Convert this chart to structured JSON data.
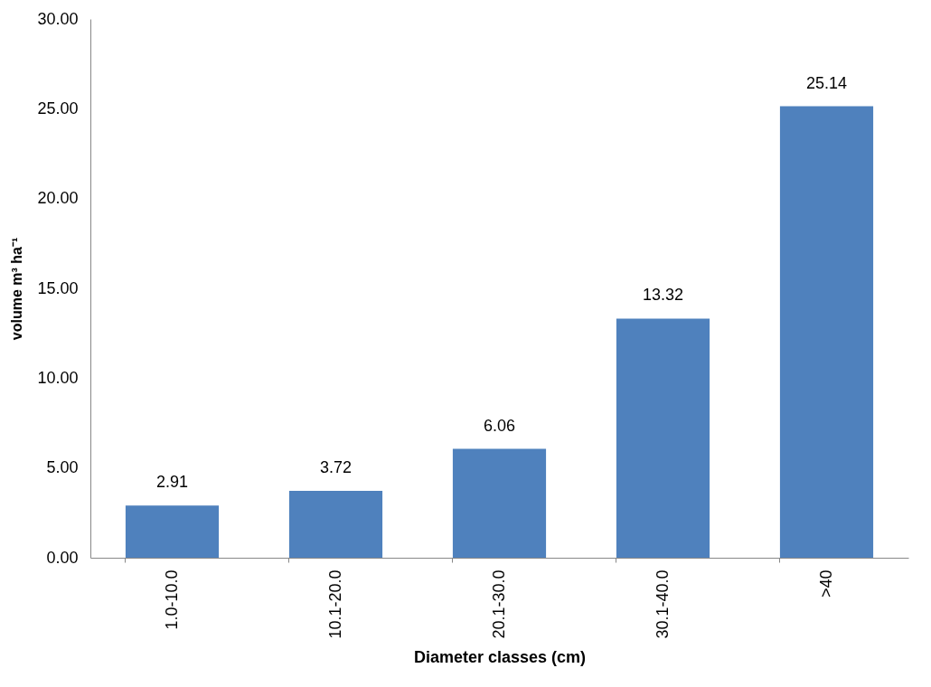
{
  "chart_data": {
    "type": "bar",
    "xlabel": "Diameter classes (cm)",
    "ylabel": "volume m³ ha⁻¹",
    "categories": [
      "1.0-10.0",
      "10.1-20.0",
      "20.1-30.0",
      "30.1-40.0",
      ">40"
    ],
    "values": [
      2.91,
      3.72,
      6.06,
      13.32,
      25.14
    ],
    "color": "#4f81bd",
    "ylim": [
      0,
      30
    ],
    "yticks": [
      {
        "value": 0,
        "label": "0.00"
      },
      {
        "value": 5,
        "label": "5.00"
      },
      {
        "value": 10,
        "label": "10.00"
      },
      {
        "value": 15,
        "label": "15.00"
      },
      {
        "value": 20,
        "label": "20.00"
      },
      {
        "value": 25,
        "label": "25.00"
      },
      {
        "value": 30,
        "label": "30.00"
      }
    ],
    "data_labels": true,
    "grid": false
  }
}
